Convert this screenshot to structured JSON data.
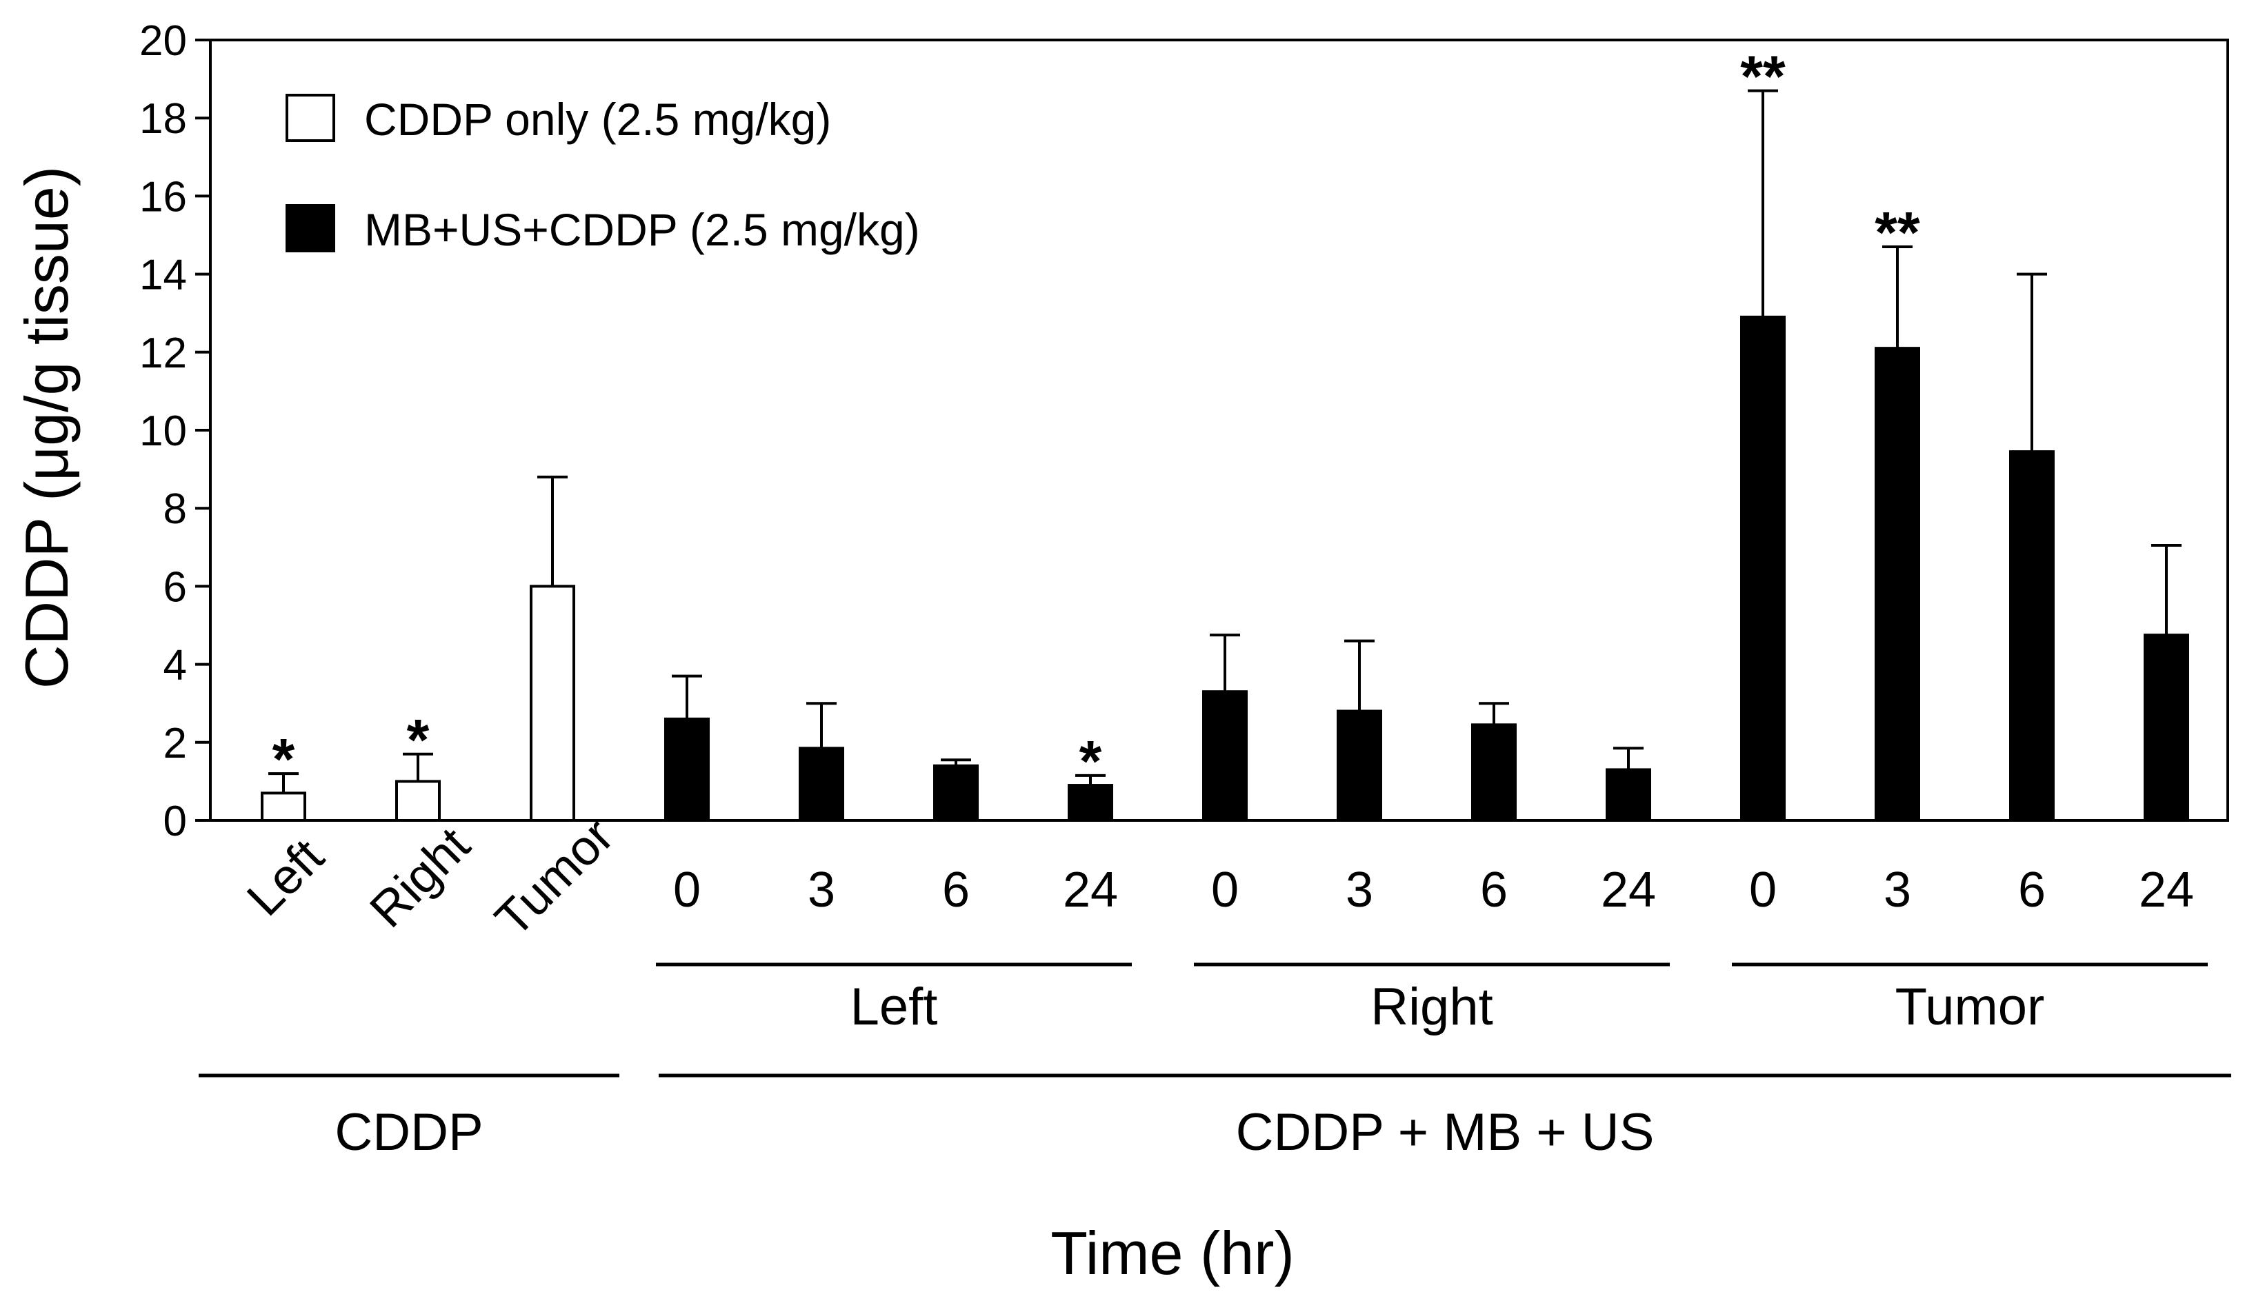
{
  "chart_data": {
    "type": "bar",
    "ylabel": "CDDP (μg/g tissue)",
    "xlabel": "Time (hr)",
    "ylim": [
      0,
      20
    ],
    "yticks": [
      0,
      2,
      4,
      6,
      8,
      10,
      12,
      14,
      16,
      18,
      20
    ],
    "legend": [
      {
        "label": "CDDP only (2.5 mg/kg)",
        "fill": "#ffffff"
      },
      {
        "label": "MB+US+CDDP (2.5 mg/kg)",
        "fill": "#000000"
      }
    ],
    "bars": [
      {
        "label": "Left",
        "value": 0.7,
        "error": 0.5,
        "fill": "#ffffff",
        "sig": "*",
        "rotated": true
      },
      {
        "label": "Right",
        "value": 1.0,
        "error": 0.7,
        "fill": "#ffffff",
        "sig": "*",
        "rotated": true
      },
      {
        "label": "Tumor",
        "value": 6.0,
        "error": 2.8,
        "fill": "#ffffff",
        "sig": "",
        "rotated": true
      },
      {
        "label": "0",
        "value": 2.6,
        "error": 1.1,
        "fill": "#000000",
        "sig": "",
        "rotated": false
      },
      {
        "label": "3",
        "value": 1.85,
        "error": 1.15,
        "fill": "#000000",
        "sig": "",
        "rotated": false
      },
      {
        "label": "6",
        "value": 1.4,
        "error": 0.15,
        "fill": "#000000",
        "sig": "",
        "rotated": false
      },
      {
        "label": "24",
        "value": 0.9,
        "error": 0.25,
        "fill": "#000000",
        "sig": "*",
        "rotated": false
      },
      {
        "label": "0",
        "value": 3.3,
        "error": 1.45,
        "fill": "#000000",
        "sig": "",
        "rotated": false
      },
      {
        "label": "3",
        "value": 2.8,
        "error": 1.8,
        "fill": "#000000",
        "sig": "",
        "rotated": false
      },
      {
        "label": "6",
        "value": 2.45,
        "error": 0.55,
        "fill": "#000000",
        "sig": "",
        "rotated": false
      },
      {
        "label": "24",
        "value": 1.3,
        "error": 0.55,
        "fill": "#000000",
        "sig": "",
        "rotated": false
      },
      {
        "label": "0",
        "value": 12.9,
        "error": 5.8,
        "fill": "#000000",
        "sig": "**",
        "rotated": false
      },
      {
        "label": "3",
        "value": 12.1,
        "error": 2.6,
        "fill": "#000000",
        "sig": "**",
        "rotated": false
      },
      {
        "label": "6",
        "value": 9.45,
        "error": 4.55,
        "fill": "#000000",
        "sig": "",
        "rotated": false
      },
      {
        "label": "24",
        "value": 4.75,
        "error": 2.3,
        "fill": "#000000",
        "sig": "",
        "rotated": false
      }
    ],
    "subgroups": [
      {
        "label": "Left",
        "from": 3,
        "to": 6
      },
      {
        "label": "Right",
        "from": 7,
        "to": 10
      },
      {
        "label": "Tumor",
        "from": 11,
        "to": 14
      }
    ],
    "groups": [
      {
        "label": "CDDP",
        "from": 0,
        "to": 2
      },
      {
        "label": "CDDP + MB + US",
        "from": 3,
        "to": 14
      }
    ]
  }
}
